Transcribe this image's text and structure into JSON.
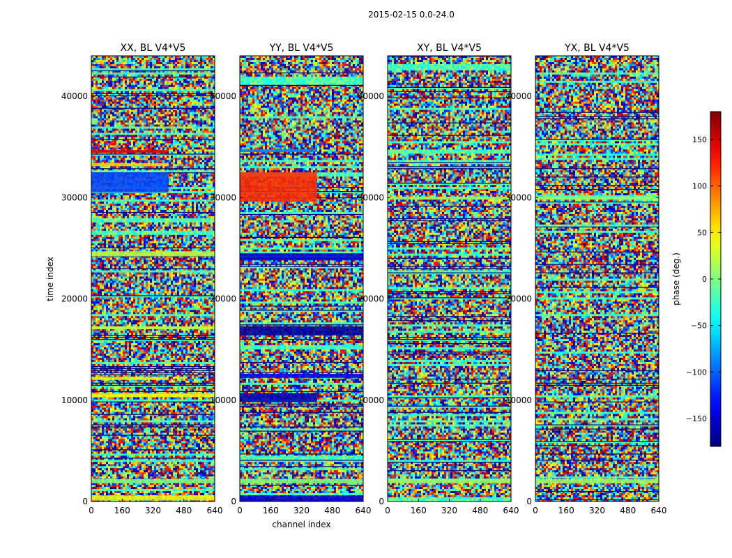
{
  "figure": {
    "suptitle": "2015-02-15 0.0-24.0"
  },
  "chart_data": {
    "type": "heatmap",
    "ylabel": "time index",
    "xlabel": "channel index",
    "xlim": [
      0,
      640
    ],
    "ylim": [
      0,
      44000
    ],
    "xticks": [
      0,
      160,
      320,
      480,
      640
    ],
    "yticks": [
      0,
      10000,
      20000,
      30000,
      40000
    ],
    "panels": [
      {
        "title": "XX, BL V4*V5",
        "bands": [
          {
            "y": [
              34400,
              34700
            ],
            "x": [
              0,
              400
            ],
            "phase": 150
          },
          {
            "y": [
              33100,
              33400
            ],
            "x": [
              0,
              400
            ],
            "phase": 60
          },
          {
            "y": [
              30500,
              32500
            ],
            "x": [
              0,
              400
            ],
            "phase": -110
          },
          {
            "y": [
              24200,
              24700
            ],
            "x": [
              0,
              640
            ],
            "phase": 20
          },
          {
            "y": [
              17000,
              17300
            ],
            "x": [
              0,
              640
            ],
            "phase": 25
          },
          {
            "y": [
              10300,
              10700
            ],
            "x": [
              0,
              640
            ],
            "phase": 45
          },
          {
            "y": [
              12000,
              12300
            ],
            "x": [
              0,
              400
            ],
            "phase": 40
          },
          {
            "y": [
              1800,
              2200
            ],
            "x": [
              0,
              640
            ],
            "phase": 0
          },
          {
            "y": [
              100,
              600
            ],
            "x": [
              0,
              640
            ],
            "phase": 40
          }
        ]
      },
      {
        "title": "YY, BL V4*V5",
        "bands": [
          {
            "y": [
              34500,
              34800
            ],
            "x": [
              0,
              400
            ],
            "phase": -90
          },
          {
            "y": [
              29600,
              32500
            ],
            "x": [
              0,
              400
            ],
            "phase": 120
          },
          {
            "y": [
              23800,
              24500
            ],
            "x": [
              0,
              640
            ],
            "phase": -150
          },
          {
            "y": [
              16400,
              17300
            ],
            "x": [
              0,
              640
            ],
            "phase": -170
          },
          {
            "y": [
              9800,
              10700
            ],
            "x": [
              0,
              400
            ],
            "phase": -160
          },
          {
            "y": [
              12200,
              12600
            ],
            "x": [
              0,
              640
            ],
            "phase": -140
          },
          {
            "y": [
              1800,
              2200
            ],
            "x": [
              0,
              640
            ],
            "phase": 0
          },
          {
            "y": [
              0,
              600
            ],
            "x": [
              0,
              640
            ],
            "phase": -150
          }
        ]
      },
      {
        "title": "XY, BL V4*V5",
        "bands": [
          {
            "y": [
              29800,
              30100
            ],
            "x": [
              0,
              640
            ],
            "phase": 10
          },
          {
            "y": [
              1800,
              2200
            ],
            "x": [
              0,
              640
            ],
            "phase": 10
          }
        ]
      },
      {
        "title": "YX, BL V4*V5",
        "bands": [
          {
            "y": [
              29800,
              30100
            ],
            "x": [
              0,
              640
            ],
            "phase": 10
          },
          {
            "y": [
              1800,
              2200
            ],
            "x": [
              0,
              640
            ],
            "phase": 10
          }
        ]
      }
    ],
    "colorbar": {
      "label": "phase (deg.)",
      "range": [
        -180,
        180
      ],
      "ticks": [
        -150,
        -100,
        -50,
        0,
        50,
        100,
        150
      ],
      "tick_labels": [
        "−150",
        "−100",
        "−50",
        "0",
        "50",
        "100",
        "150"
      ],
      "colormap": "jet"
    }
  }
}
